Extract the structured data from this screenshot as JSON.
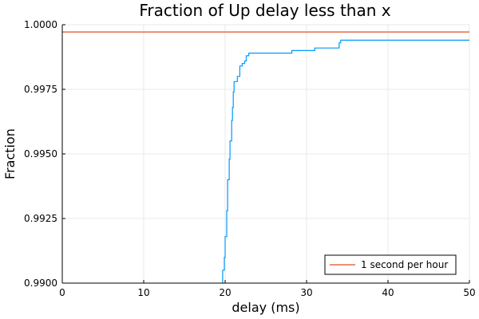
{
  "chart_data": {
    "type": "line",
    "title": "Fraction of Up delay less than x",
    "xlabel": "delay (ms)",
    "ylabel": "Fraction",
    "xlim": [
      0,
      50
    ],
    "ylim": [
      0.99,
      1.0
    ],
    "xticks": [
      0,
      10,
      20,
      30,
      40,
      50
    ],
    "xtick_labels": [
      "0",
      "10",
      "20",
      "30",
      "40",
      "50"
    ],
    "yticks": [
      0.99,
      0.9925,
      0.995,
      0.9975,
      1.0
    ],
    "ytick_labels": [
      "0.9900",
      "0.9925",
      "0.9950",
      "0.9975",
      "1.0000"
    ],
    "grid": true,
    "legend_position": "bottom-right",
    "colors": {
      "delay_series": "#009AFA",
      "reference_line": "#E26F46",
      "grid": "#e8e8e8",
      "axis": "#000000"
    },
    "series": [
      {
        "key": "delay_series",
        "x": [
          19.6,
          19.7,
          19.9,
          20.0,
          20.2,
          20.3,
          20.5,
          20.6,
          20.8,
          20.9,
          21.0,
          21.1,
          21.3,
          21.5,
          21.8,
          22.0,
          22.1,
          22.4,
          22.6,
          22.9,
          23.2,
          25.0,
          26.0,
          27.0,
          28.1,
          28.2,
          30.5,
          31.0,
          33.5,
          34.0,
          34.2,
          40.0,
          50.0
        ],
        "y": [
          0.99,
          0.9905,
          0.991,
          0.9918,
          0.9928,
          0.994,
          0.9948,
          0.9955,
          0.9963,
          0.9968,
          0.9974,
          0.9978,
          0.9978,
          0.998,
          0.9984,
          0.9984,
          0.9985,
          0.9986,
          0.9988,
          0.9989,
          0.9989,
          0.9989,
          0.9989,
          0.9989,
          0.9989,
          0.999,
          0.999,
          0.9991,
          0.9991,
          0.9993,
          0.9994,
          0.9994,
          0.9994
        ]
      },
      {
        "key": "reference_line",
        "name": "1 second per hour",
        "x": [
          0,
          50
        ],
        "y": [
          0.99972,
          0.99972
        ]
      }
    ]
  }
}
